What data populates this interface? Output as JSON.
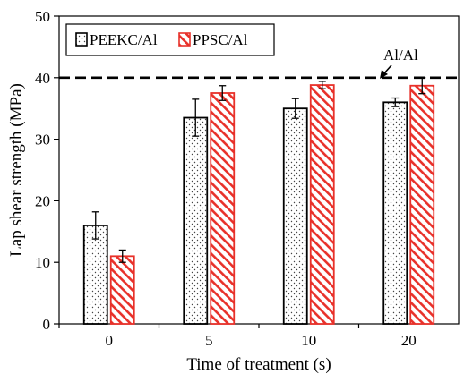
{
  "chart_data": {
    "type": "bar",
    "xlabel": "Time of treatment (s)",
    "ylabel": "Lap shear strength (MPa)",
    "categories": [
      "0",
      "5",
      "10",
      "20"
    ],
    "ylim": [
      0,
      50
    ],
    "yticks": [
      0,
      10,
      20,
      30,
      40,
      50
    ],
    "grid": false,
    "legend_position": "top-left",
    "series": [
      {
        "name": "PEEKC/Al",
        "values": [
          16,
          33.5,
          35,
          36
        ],
        "errors": [
          2.2,
          3.0,
          1.6,
          0.7
        ],
        "color": "#000000",
        "pattern": "dots"
      },
      {
        "name": "PPSC/Al",
        "values": [
          11,
          37.5,
          38.8,
          38.7
        ],
        "errors": [
          1.0,
          1.2,
          0.6,
          1.3
        ],
        "color": "#e8312a",
        "pattern": "hatch"
      }
    ],
    "reference_line": {
      "value": 40,
      "label": "Al/Al",
      "style": "dashed"
    }
  }
}
